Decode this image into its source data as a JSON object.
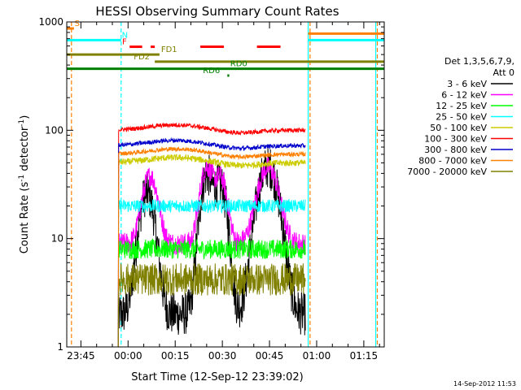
{
  "chart_data": {
    "type": "line",
    "title": "HESSI Observing Summary Count Rates",
    "xlabel": "Start Time (12-Sep-12 23:39:02)",
    "ylabel": "Count Rate (s",
    "ylabel_sup": "-1",
    "ylabel_tail": " detector",
    "ylabel_end": ")",
    "y_scale": "log",
    "ylim": [
      1,
      1000
    ],
    "y_ticks": [
      "1",
      "10",
      "100",
      "1000"
    ],
    "x_range_minutes": [
      -19.5,
      81.5
    ],
    "x_ticks": [
      {
        "min": -15,
        "label": "23:45"
      },
      {
        "min": 0,
        "label": "00:00"
      },
      {
        "min": 15,
        "label": "00:15"
      },
      {
        "min": 30,
        "label": "00:30"
      },
      {
        "min": 45,
        "label": "00:45"
      },
      {
        "min": 60,
        "label": "01:00"
      },
      {
        "min": 75,
        "label": "01:15"
      }
    ],
    "legend_header_1": "Det 1,3,5,6,7,9,",
    "legend_header_2": "Att 0",
    "series": [
      {
        "name": "3 - 6 keV",
        "color": "#000000",
        "base": 2,
        "noise": 0.2,
        "profile": "flare_low"
      },
      {
        "name": "6 - 12 keV",
        "color": "#ff00ff",
        "base": 9,
        "noise": 0.1,
        "profile": "flare_mid"
      },
      {
        "name": "12 - 25 keV",
        "color": "#00ff00",
        "base": 8,
        "noise": 0.09,
        "profile": "flat"
      },
      {
        "name": "25 - 50 keV",
        "color": "#00ffff",
        "base": 20,
        "noise": 0.06,
        "profile": "flat"
      },
      {
        "name": "50 - 100 keV",
        "color": "#cccc00",
        "base": 50,
        "noise": 0.03,
        "profile": "hump"
      },
      {
        "name": "100 - 300 keV",
        "color": "#ff0000",
        "base": 100,
        "noise": 0.02,
        "profile": "hump"
      },
      {
        "name": "300 - 800 keV",
        "color": "#0000cc",
        "base": 72,
        "noise": 0.02,
        "profile": "hump"
      },
      {
        "name": "800 - 7000 keV",
        "color": "#ff8000",
        "base": 60,
        "noise": 0.02,
        "profile": "hump"
      },
      {
        "name": "7000 - 20000 keV",
        "color": "#808000",
        "base": 4.2,
        "noise": 0.15,
        "profile": "flat"
      }
    ],
    "data_interval_minutes": [
      -3.3,
      56.5
    ],
    "flags": [
      {
        "label": "S",
        "color": "#ff8000",
        "y": 870,
        "segments": [
          [
            -19.5,
            -17.2
          ]
        ],
        "label_at": -17.0
      },
      {
        "label": "N",
        "color": "#00ffff",
        "y": 680,
        "segments": [
          [
            -19.5,
            -2.2
          ],
          [
            57.3,
            81.5
          ]
        ],
        "label_at": -2.0
      },
      {
        "label": "F",
        "color": "#ff0000",
        "y": 590,
        "segments": [
          [
            0.5,
            4.5
          ],
          [
            7.2,
            8.5
          ],
          [
            23,
            30.5
          ],
          [
            41,
            48.5
          ]
        ],
        "label_at": -1.9
      },
      {
        "label": "",
        "color": "#ff8000",
        "y": 780,
        "segments": [
          [
            57.3,
            81.5
          ]
        ],
        "label_at": 0
      },
      {
        "label": "FD1",
        "color": "#808000",
        "y": 500,
        "segments": [
          [
            -19.5,
            10
          ]
        ],
        "label_at": 10.5
      },
      {
        "label": "FD2",
        "color": "#808000",
        "y": 430,
        "segments": [
          [
            8.5,
            81.5
          ]
        ],
        "label_at": 1.8
      },
      {
        "label": "RD0",
        "color": "#008000",
        "y": 370,
        "segments": [
          [
            -19.5,
            81.5
          ]
        ],
        "label_at": 32.5
      },
      {
        "label": "RD6",
        "color": "#008000",
        "y": 320,
        "segments": [
          [
            31.6,
            32.2
          ]
        ],
        "label_at": 23.8
      }
    ],
    "vertical_markers": [
      {
        "min": -18.0,
        "color": "#ff8000",
        "style": "dashed"
      },
      {
        "min": -2.2,
        "color": "#00ffff",
        "style": "dashed"
      },
      {
        "min": 57.3,
        "color": "#00ffff",
        "style": "solid"
      },
      {
        "min": 57.9,
        "color": "#ff8000",
        "style": "dashed"
      },
      {
        "min": 78.8,
        "color": "#00ffff",
        "style": "solid"
      },
      {
        "min": 79.3,
        "color": "#ff8000",
        "style": "dashed"
      }
    ],
    "grid": false,
    "legend_position": "right"
  },
  "footer": {
    "timestamp": "14-Sep-2012 11:53"
  }
}
